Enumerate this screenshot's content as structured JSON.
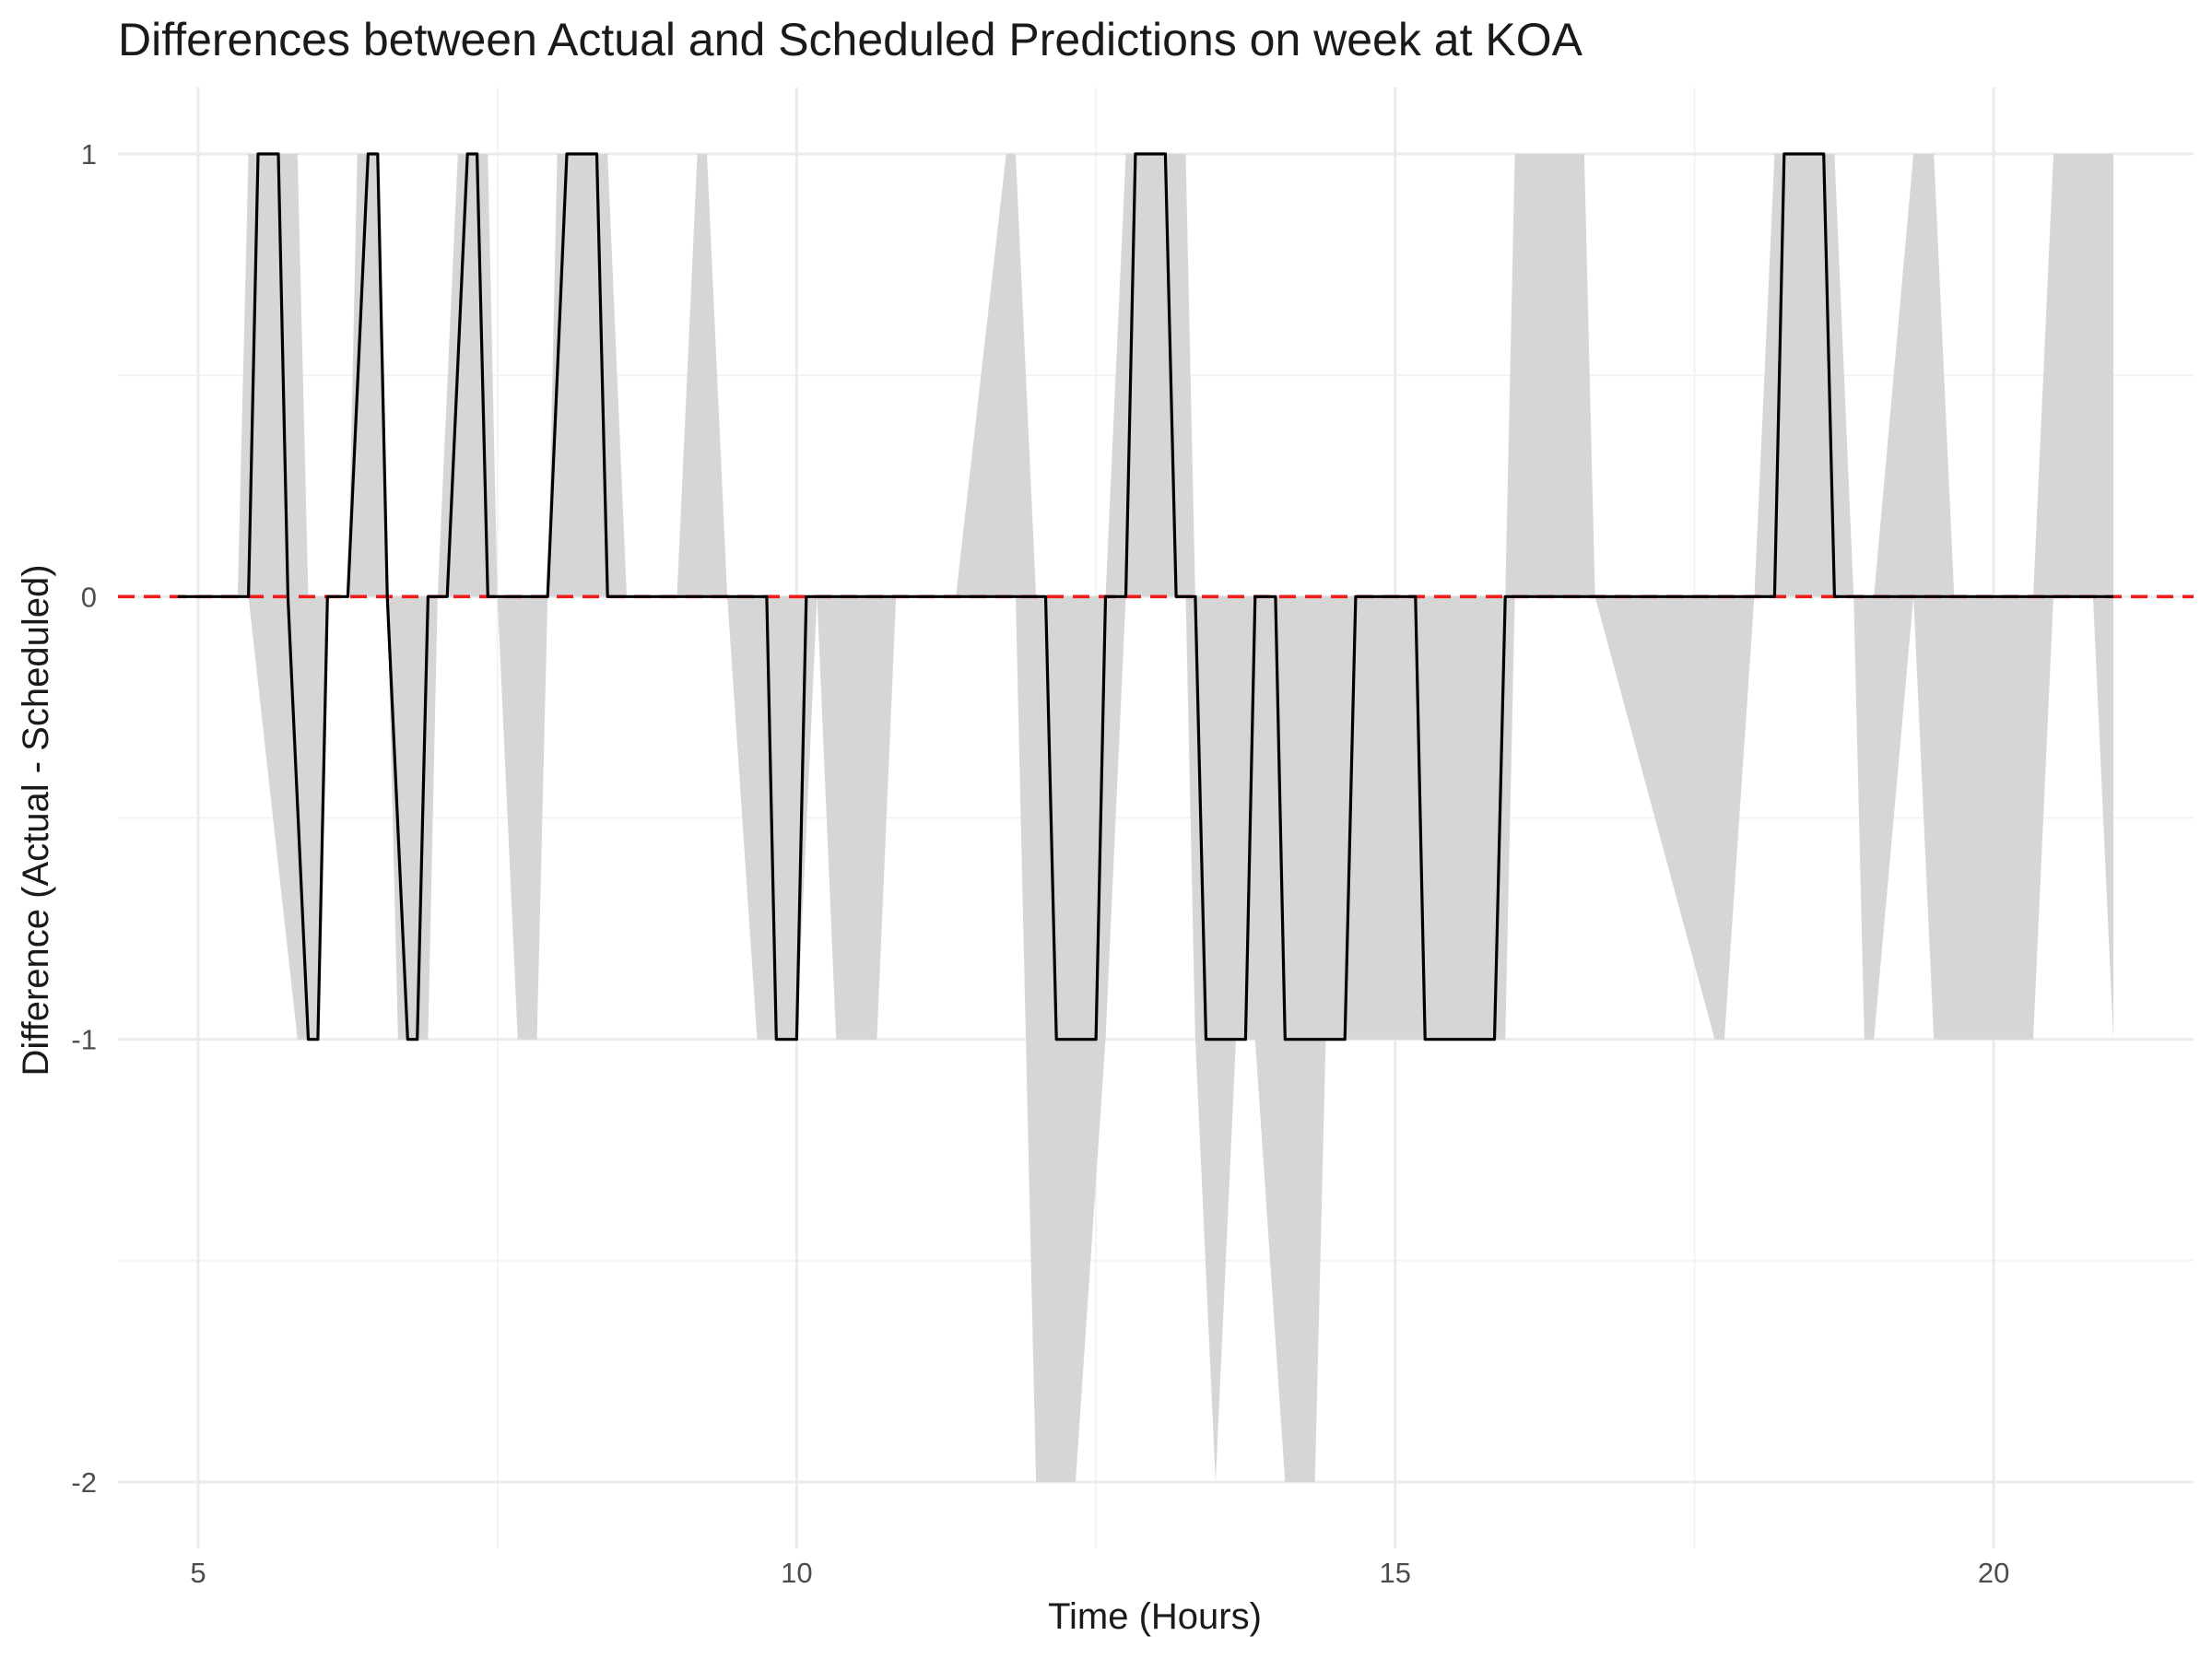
{
  "chart_data": {
    "type": "line",
    "title": "Differences between Actual and Scheduled Predictions on week at KOA",
    "xlabel": "Time (Hours)",
    "ylabel": "Difference (Actual - Scheduled)",
    "xlim": [
      4.33,
      21.67
    ],
    "ylim": [
      -2.15,
      1.15
    ],
    "x_ticks": [
      5,
      10,
      15,
      20
    ],
    "y_ticks": [
      1,
      0,
      -1,
      -2
    ],
    "x_tick_labels": [
      "5",
      "10",
      "15",
      "20"
    ],
    "y_tick_labels": [
      "1",
      "0",
      "-1",
      "-2"
    ],
    "grid": true,
    "legend": "none",
    "reference_line": {
      "y": 0,
      "color": "#ee1c1c",
      "style": "dashed"
    },
    "series": [
      {
        "color": "#000000",
        "x": [
          4.83,
          5.42,
          5.5,
          5.67,
          5.75,
          5.92,
          6.0,
          6.08,
          6.25,
          6.42,
          6.5,
          6.58,
          6.75,
          6.83,
          6.92,
          7.08,
          7.25,
          7.33,
          7.42,
          7.92,
          8.08,
          8.33,
          8.42,
          9.75,
          9.83,
          10.0,
          10.08,
          12.08,
          12.17,
          12.5,
          12.58,
          12.75,
          12.83,
          13.08,
          13.17,
          13.33,
          13.42,
          13.75,
          13.83,
          14.0,
          14.08,
          14.58,
          14.67,
          15.17,
          15.25,
          15.83,
          15.92,
          18.17,
          18.25,
          18.58,
          18.67,
          21.0
        ],
        "y": [
          0,
          0,
          1,
          1,
          0,
          -1,
          -1,
          0,
          0,
          1,
          1,
          0,
          -1,
          -1,
          0,
          0,
          1,
          1,
          0,
          0,
          1,
          1,
          0,
          0,
          -1,
          -1,
          0,
          0,
          -1,
          -1,
          0,
          0,
          1,
          1,
          0,
          0,
          -1,
          -1,
          0,
          0,
          -1,
          -1,
          0,
          0,
          -1,
          -1,
          0,
          0,
          1,
          1,
          0,
          0
        ]
      }
    ],
    "band": {
      "color": "#d6d6d6",
      "x": [
        5.33,
        5.42,
        5.83,
        5.92,
        6.0,
        6.08,
        6.25,
        6.33,
        6.42,
        6.5,
        6.58,
        6.67,
        6.83,
        6.92,
        7.0,
        7.17,
        7.25,
        7.42,
        7.5,
        7.67,
        7.83,
        7.92,
        8.0,
        8.42,
        8.58,
        9.0,
        9.17,
        9.25,
        9.42,
        9.67,
        9.83,
        10.0,
        10.17,
        10.33,
        10.67,
        10.83,
        11.33,
        11.75,
        11.83,
        12.0,
        12.25,
        12.33,
        12.58,
        12.75,
        12.83,
        13.25,
        13.33,
        13.5,
        13.67,
        13.75,
        13.83,
        14.08,
        14.25,
        14.33,
        14.42,
        14.67,
        14.75,
        14.83,
        15.0,
        15.17,
        15.92,
        16.0,
        16.08,
        16.58,
        16.67,
        17.67,
        17.75,
        18.0,
        18.17,
        18.67,
        18.83,
        18.92,
        19.0,
        19.33,
        19.5,
        19.67,
        19.83,
        20.33,
        20.5,
        20.83,
        21.0
      ],
      "lower": [
        0,
        0,
        -1,
        -1,
        -1,
        0,
        0,
        0,
        0,
        0,
        0,
        -1,
        -1,
        -1,
        0,
        0,
        0,
        0,
        0,
        -1,
        -1,
        0,
        0,
        0,
        0,
        0,
        0,
        0,
        0,
        -1,
        -1,
        -1,
        0,
        -1,
        -1,
        0,
        0,
        0,
        0,
        -2,
        -2,
        -2,
        -1,
        0,
        0,
        0,
        -1,
        -2,
        -1,
        -1,
        -1,
        -2,
        -2,
        -2,
        -1,
        -1,
        -1,
        -1,
        -1,
        -1,
        -1,
        0,
        0,
        0,
        0,
        -1,
        -1,
        0,
        0,
        0,
        0,
        -1,
        -1,
        0,
        -1,
        -1,
        -1,
        -1,
        0,
        0,
        -1
      ],
      "upper": [
        0,
        1,
        1,
        0,
        0,
        0,
        0,
        1,
        1,
        1,
        0,
        0,
        0,
        0,
        0,
        1,
        1,
        1,
        0,
        0,
        0,
        0,
        1,
        1,
        0,
        0,
        1,
        1,
        0,
        0,
        0,
        0,
        0,
        0,
        0,
        0,
        0,
        1,
        1,
        0,
        0,
        0,
        0,
        1,
        1,
        1,
        0,
        0,
        0,
        0,
        0,
        0,
        0,
        0,
        0,
        0,
        0,
        0,
        0,
        0,
        0,
        1,
        1,
        1,
        0,
        0,
        0,
        0,
        1,
        1,
        0,
        0,
        0,
        1,
        1,
        0,
        0,
        0,
        1,
        1,
        1
      ]
    }
  }
}
